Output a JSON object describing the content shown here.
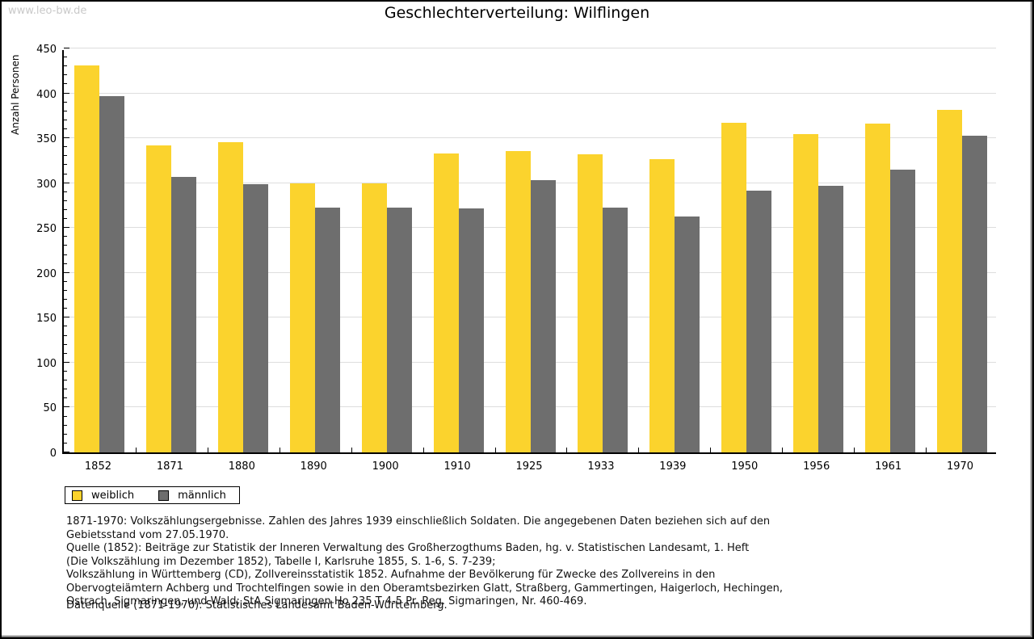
{
  "page": {
    "watermark": "www.leo-bw.de",
    "title": "Geschlechterverteilung: Wilflingen"
  },
  "chart_data": {
    "type": "bar",
    "title": "Geschlechterverteilung: Wilflingen",
    "ylabel": "Anzahl Personen",
    "xlabel": "",
    "ylim": [
      0,
      450
    ],
    "ytick_step": 50,
    "y_minor_tick_step": 10,
    "grid": true,
    "legend_position": "bottom-left",
    "categories": [
      "1852",
      "1871",
      "1880",
      "1890",
      "1900",
      "1910",
      "1925",
      "1933",
      "1939",
      "1950",
      "1956",
      "1961",
      "1970"
    ],
    "series": [
      {
        "name": "weiblich",
        "color": "#FBD32D",
        "values": [
          431,
          342,
          346,
          300,
          300,
          333,
          336,
          332,
          327,
          367,
          355,
          366,
          382
        ]
      },
      {
        "name": "männlich",
        "color": "#6E6E6E",
        "values": [
          397,
          307,
          299,
          273,
          273,
          272,
          303,
          273,
          263,
          292,
          297,
          315,
          353
        ]
      }
    ]
  },
  "colors": {
    "weiblich": "#FBD32D",
    "maennlich": "#6E6E6E",
    "gridline": "#DDDDDD",
    "axis": "#000000",
    "watermark": "#C9C9C9"
  },
  "footnotes": {
    "lines": [
      "1871-1970: Volkszählungsergebnisse. Zahlen des Jahres 1939 einschließlich Soldaten. Die angegebenen Daten beziehen sich auf den",
      "Gebietsstand vom 27.05.1970.",
      "Quelle (1852): Beiträge zur Statistik der Inneren Verwaltung des Großherzogthums Baden, hg. v. Statistischen Landesamt, 1. Heft",
      "(Die Volkszählung im Dezember 1852), Tabelle I, Karlsruhe 1855, S. 1-6, S. 7-239;",
      "Volkszählung in Württemberg (CD), Zollvereinsstatistik 1852. Aufnahme der Bevölkerung für Zwecke des Zollvereins in den",
      "Obervogteiämtern Achberg und Trochtelfingen sowie in den Oberamtsbezirken Glatt, Straßberg, Gammertingen, Haigerloch, Hechingen,",
      "Ostrach, Sigmaringen, und Wald; StA Sigmaringen Ho 235 T 4-5 Pr. Reg. Sigmaringen, Nr. 460-469."
    ],
    "datasource": "Datenquelle (1871-1970): Statistisches Landesamt Baden-Württemberg."
  }
}
